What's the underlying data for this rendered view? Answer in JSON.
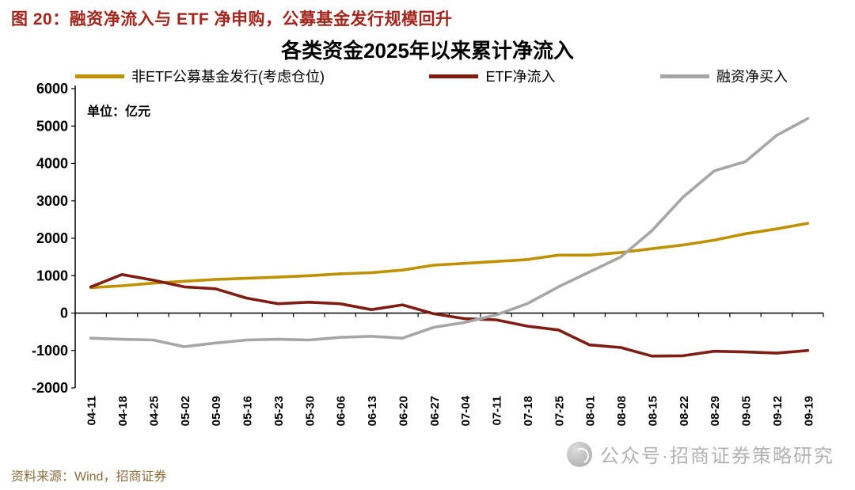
{
  "header": {
    "figure_label": "图 20：",
    "title": "融资净流入与 ETF 净申购，公募基金发行规模回升"
  },
  "colors": {
    "title": "#a3251c",
    "source": "#8a6d3b",
    "watermark": "#a5a5a5",
    "axis": "#000000"
  },
  "chart_data": {
    "type": "line",
    "title": "各类资金2025年以来累计净流入",
    "unit_label": "单位：亿元",
    "ylim": [
      -2000,
      6000
    ],
    "ytick_step": 1000,
    "grid": false,
    "legend_position": "top",
    "categories": [
      "04-11",
      "04-18",
      "04-25",
      "05-02",
      "05-09",
      "05-16",
      "05-23",
      "05-30",
      "06-06",
      "06-13",
      "06-20",
      "06-27",
      "07-04",
      "07-11",
      "07-18",
      "07-25",
      "08-01",
      "08-08",
      "08-15",
      "08-22",
      "08-29",
      "09-05",
      "09-12",
      "09-19"
    ],
    "series": [
      {
        "name": "非ETF公募基金发行(考虑仓位)",
        "color": "#bf9000",
        "values": [
          680,
          730,
          800,
          850,
          900,
          930,
          960,
          1000,
          1050,
          1080,
          1150,
          1280,
          1330,
          1380,
          1430,
          1550,
          1550,
          1620,
          1720,
          1820,
          1950,
          2120,
          2250,
          2400
        ]
      },
      {
        "name": "ETF净流入",
        "color": "#7f1d12",
        "values": [
          700,
          1030,
          880,
          700,
          650,
          400,
          250,
          290,
          250,
          90,
          220,
          -20,
          -150,
          -180,
          -350,
          -450,
          -850,
          -920,
          -1150,
          -1140,
          -1020,
          -1040,
          -1070,
          -1000
        ]
      },
      {
        "name": "融资净买入",
        "color": "#a6a6a6",
        "values": [
          -670,
          -700,
          -720,
          -900,
          -800,
          -720,
          -700,
          -720,
          -650,
          -620,
          -670,
          -380,
          -250,
          -50,
          250,
          700,
          1100,
          1500,
          2200,
          3100,
          3800,
          4050,
          4750,
          5200
        ]
      }
    ]
  },
  "footer": {
    "source": "资料来源：Wind，招商证券"
  },
  "watermark": {
    "text": "公众号·招商证券策略研究",
    "icon": "broadcast-logo-icon"
  }
}
